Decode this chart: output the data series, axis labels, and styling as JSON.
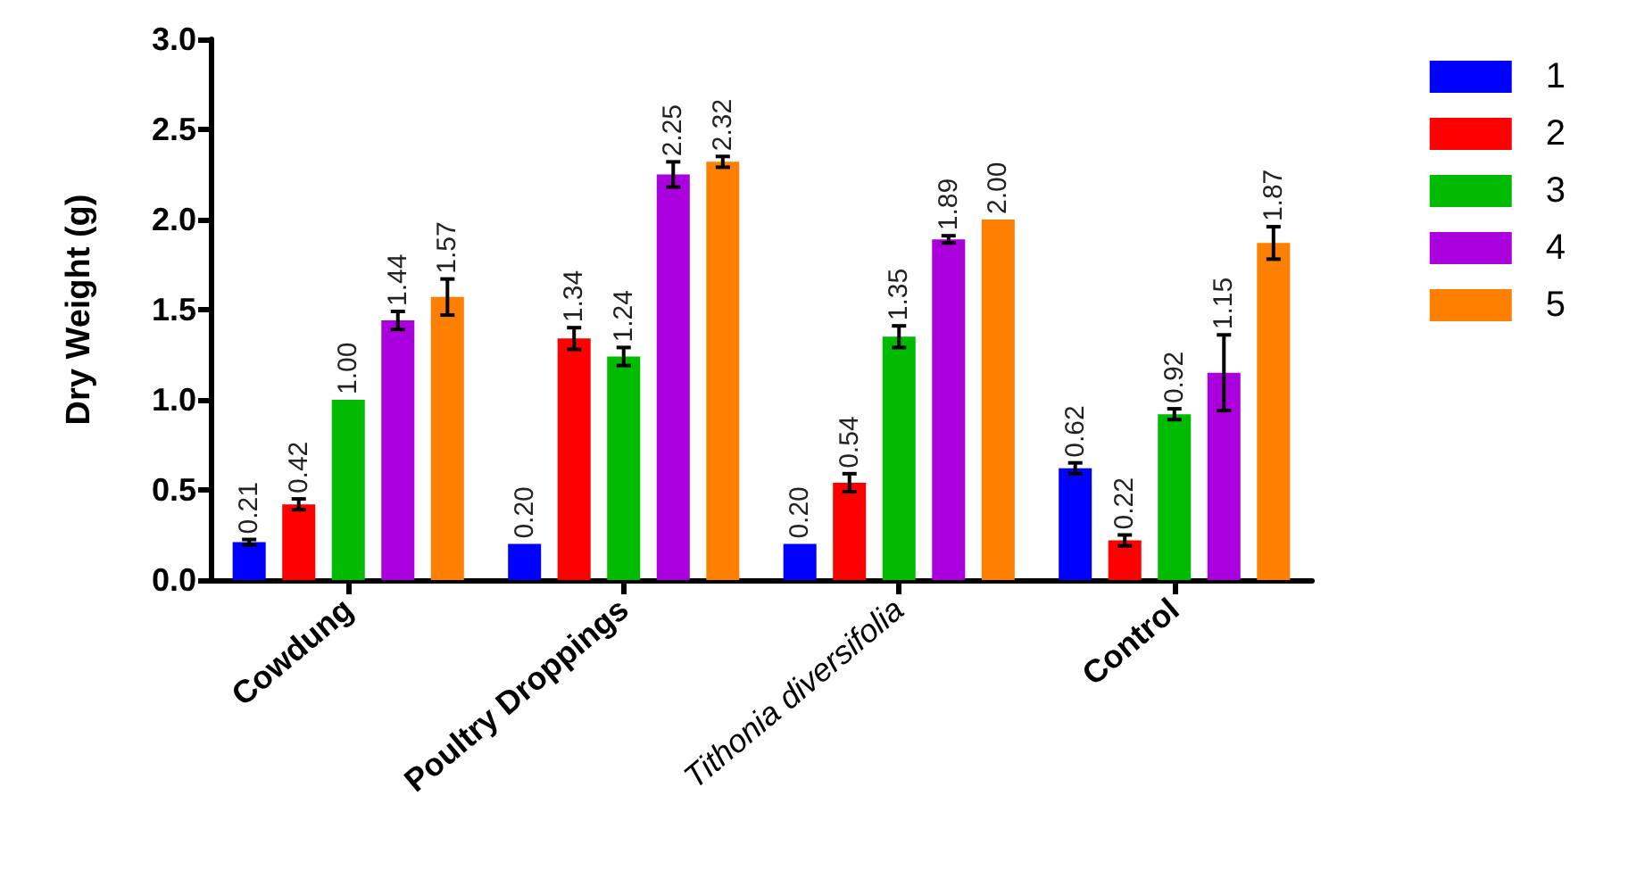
{
  "chart_data": {
    "type": "bar",
    "ylabel": "Dry Weight (g)",
    "categories": [
      "Cowdung",
      "Poultry Droppings",
      "Tithonia diversifolia",
      "Control"
    ],
    "series": [
      {
        "name": "1",
        "color": "#0000ff",
        "values": [
          0.21,
          0.2,
          0.2,
          0.62
        ],
        "errors": [
          0.015,
          null,
          null,
          0.03
        ],
        "value_labels": [
          "0.21",
          "0.20",
          "0.20",
          "0.62"
        ]
      },
      {
        "name": "2",
        "color": "#ff0000",
        "values": [
          0.42,
          1.34,
          0.54,
          0.22
        ],
        "errors": [
          0.03,
          0.06,
          0.05,
          0.03
        ],
        "value_labels": [
          "0.42",
          "1.34",
          "0.54",
          "0.22"
        ]
      },
      {
        "name": "3",
        "color": "#00bb00",
        "values": [
          1.0,
          1.24,
          1.35,
          0.92
        ],
        "errors": [
          null,
          0.05,
          0.06,
          0.03
        ],
        "value_labels": [
          "1.00",
          "1.24",
          "1.35",
          "0.92"
        ]
      },
      {
        "name": "4",
        "color": "#aa00dd",
        "values": [
          1.44,
          2.25,
          1.89,
          1.15
        ],
        "errors": [
          0.05,
          0.07,
          0.02,
          0.21
        ],
        "value_labels": [
          "1.44",
          "2.25",
          "1.89",
          "1.15"
        ]
      },
      {
        "name": "5",
        "color": "#ff8000",
        "values": [
          1.57,
          2.32,
          2.0,
          1.87
        ],
        "errors": [
          0.1,
          0.03,
          null,
          0.09
        ],
        "value_labels": [
          "1.57",
          "2.32",
          "2.00",
          "1.87"
        ]
      }
    ],
    "ylim": [
      0,
      3
    ],
    "yticks": [
      {
        "value": 0,
        "label": "0.0"
      },
      0.5,
      {
        "value": 1,
        "label": "1.0"
      },
      1.5,
      {
        "value": 2,
        "label": "2.0"
      },
      2.5,
      {
        "value": 3,
        "label": "3.0"
      }
    ],
    "grid": false,
    "legend": "top right"
  }
}
